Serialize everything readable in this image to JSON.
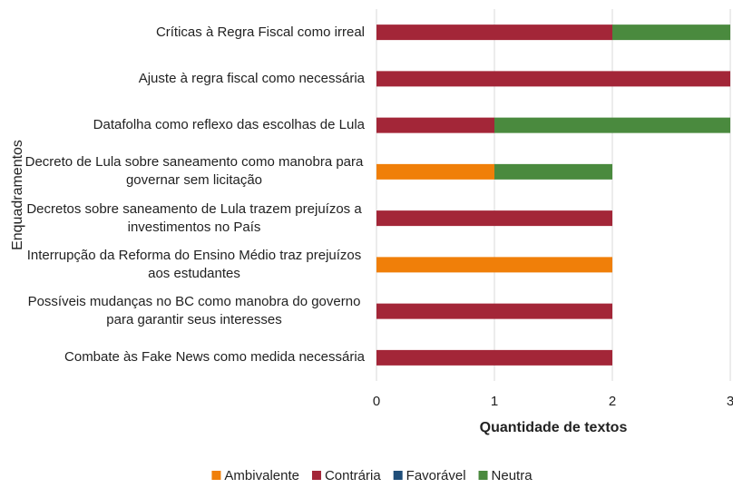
{
  "chart_data": {
    "type": "stacked-bar-horizontal",
    "y_axis_label": "Enquadramentos",
    "x_axis_label": "Quantidade de textos",
    "categories": [
      "Críticas à Regra Fiscal como irreal",
      "Ajuste à regra fiscal como necessária",
      "Datafolha como reflexo das escolhas de Lula",
      "Decreto de Lula sobre saneamento como manobra para governar sem licitação",
      "Decretos sobre saneamento de Lula trazem prejuízos a investimentos no País",
      "Interrupção da Reforma do Ensino Médio traz prejuízos aos estudantes",
      "Possíveis mudanças no BC como manobra do governo para garantir seus interesses",
      "Combate às Fake News como medida necessária"
    ],
    "series": [
      {
        "name": "Ambivalente",
        "color": "#f07f09",
        "values": [
          0,
          0,
          0,
          1,
          0,
          2,
          0,
          0
        ]
      },
      {
        "name": "Contrária",
        "color": "#a32638",
        "values": [
          2,
          3,
          1,
          0,
          2,
          0,
          2,
          2
        ]
      },
      {
        "name": "Favorável",
        "color": "#1f4e79",
        "values": [
          0,
          0,
          0,
          0,
          0,
          0,
          0,
          0
        ]
      },
      {
        "name": "Neutra",
        "color": "#4a8a3e",
        "values": [
          1,
          0,
          2,
          1,
          0,
          0,
          0,
          0
        ]
      }
    ],
    "xlim": [
      0,
      3
    ],
    "xticks": [
      0,
      1,
      2,
      3
    ],
    "grid": true,
    "legend": "bottom"
  }
}
